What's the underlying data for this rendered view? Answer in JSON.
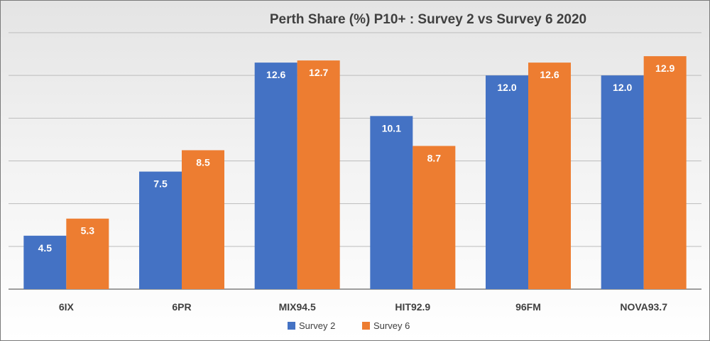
{
  "chart_data": {
    "type": "bar",
    "title": "Perth Share (%) P10+ : Survey 2 vs Survey 6 2020",
    "categories": [
      "6IX",
      "6PR",
      "MIX94.5",
      "HIT92.9",
      "96FM",
      "NOVA93.7"
    ],
    "series": [
      {
        "name": "Survey 2",
        "values": [
          4.5,
          7.5,
          12.6,
          10.1,
          12.0,
          12.0
        ],
        "color": "#4472C4"
      },
      {
        "name": "Survey 6",
        "values": [
          5.3,
          8.5,
          12.7,
          8.7,
          12.6,
          12.9
        ],
        "color": "#ED7D31"
      }
    ],
    "ylim": [
      2,
      14
    ],
    "gridlines": true,
    "y_tick_labels_shown": false,
    "legend_position": "bottom"
  }
}
